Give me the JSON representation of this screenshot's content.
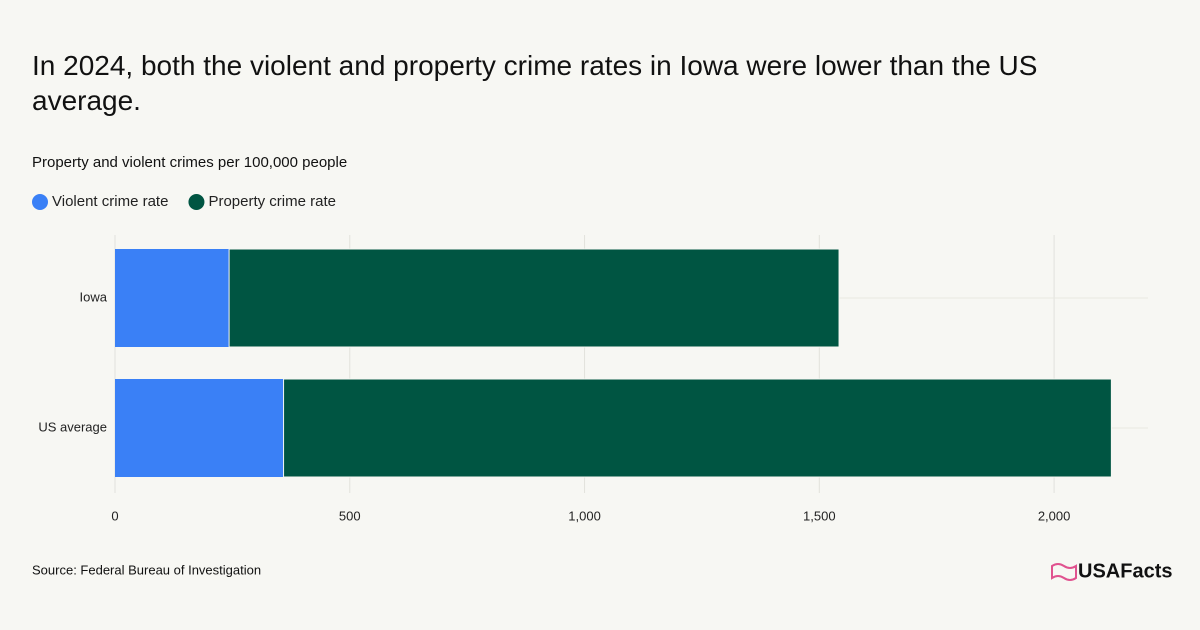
{
  "chart_data": {
    "type": "bar",
    "orientation": "horizontal",
    "stacked": true,
    "title": "In 2024, both the violent and property crime rates in Iowa were lower than the US average.",
    "subtitle": "Property and violent crimes per 100,000 people",
    "categories": [
      "Iowa",
      "US average"
    ],
    "series": [
      {
        "name": "Violent crime rate",
        "color": "#3a80f6",
        "values": [
          243,
          359
        ]
      },
      {
        "name": "Property crime rate",
        "color": "#005542",
        "values": [
          1299,
          1763
        ]
      }
    ],
    "xlim": [
      0,
      2200
    ],
    "xticks": [
      0,
      500,
      {
        "value": 1000,
        "label": "1,000"
      },
      {
        "value": 1500,
        "label": "1,500"
      },
      {
        "value": 2000,
        "label": "2,000"
      }
    ],
    "grid": true,
    "source": "Source: Federal Bureau of Investigation",
    "logo": "USAFacts"
  }
}
